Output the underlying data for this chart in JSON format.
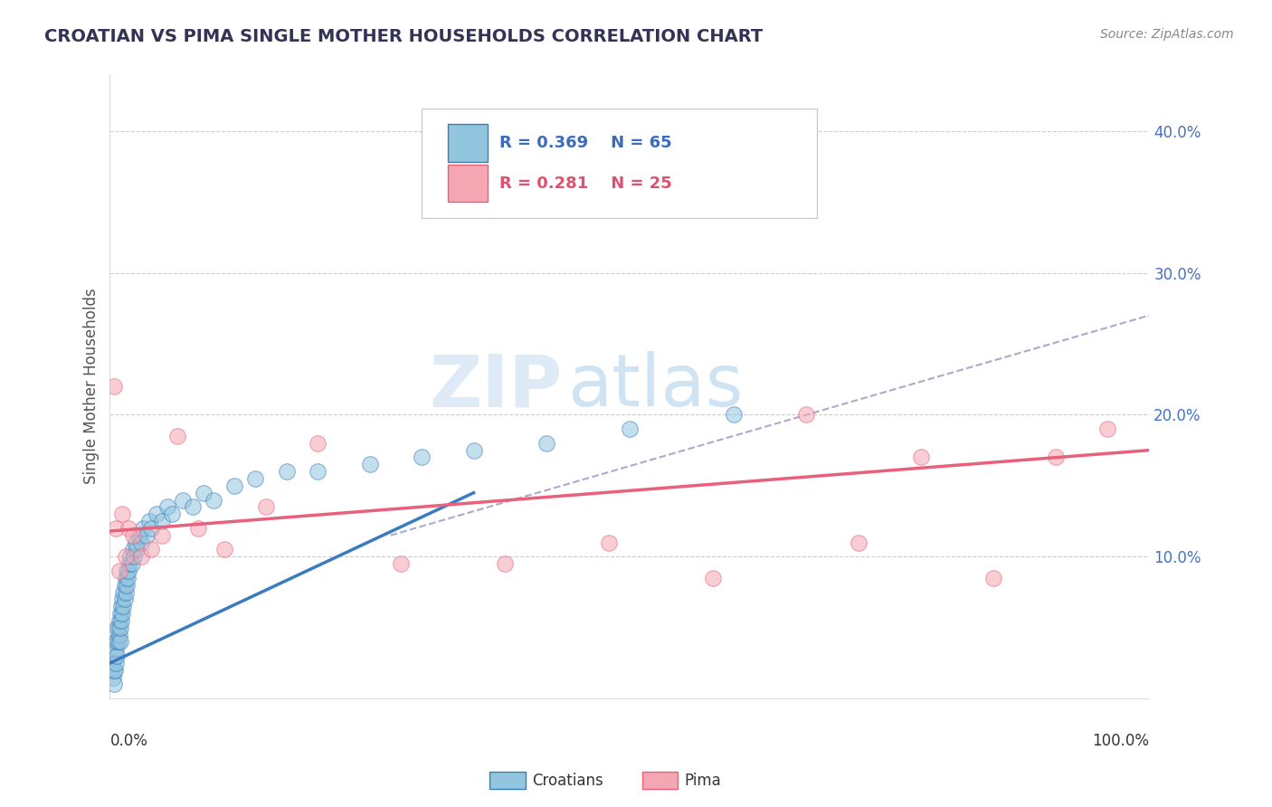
{
  "title": "CROATIAN VS PIMA SINGLE MOTHER HOUSEHOLDS CORRELATION CHART",
  "source": "Source: ZipAtlas.com",
  "ylabel": "Single Mother Households",
  "xlim": [
    0,
    1.0
  ],
  "ylim": [
    0,
    0.44
  ],
  "yticks": [
    0.0,
    0.1,
    0.2,
    0.3,
    0.4
  ],
  "ytick_labels": [
    "",
    "10.0%",
    "20.0%",
    "30.0%",
    "40.0%"
  ],
  "legend_croatians_R": "R = 0.369",
  "legend_croatians_N": "N = 65",
  "legend_pima_R": "R = 0.281",
  "legend_pima_N": "N = 25",
  "color_blue": "#92c5de",
  "color_blue_line": "#3a7bbf",
  "color_pink": "#f4a7b2",
  "color_pink_line": "#e8607a",
  "color_dashed": "#aaaacc",
  "watermark_zip": "ZIP",
  "watermark_atlas": "atlas",
  "croatians_x": [
    0.002,
    0.003,
    0.003,
    0.004,
    0.004,
    0.005,
    0.005,
    0.005,
    0.006,
    0.006,
    0.007,
    0.007,
    0.007,
    0.008,
    0.008,
    0.009,
    0.009,
    0.01,
    0.01,
    0.01,
    0.011,
    0.011,
    0.012,
    0.012,
    0.013,
    0.013,
    0.014,
    0.014,
    0.015,
    0.015,
    0.016,
    0.016,
    0.017,
    0.018,
    0.019,
    0.02,
    0.021,
    0.022,
    0.023,
    0.025,
    0.026,
    0.028,
    0.03,
    0.032,
    0.035,
    0.038,
    0.04,
    0.045,
    0.05,
    0.055,
    0.06,
    0.07,
    0.08,
    0.09,
    0.1,
    0.12,
    0.14,
    0.17,
    0.2,
    0.25,
    0.3,
    0.35,
    0.42,
    0.5,
    0.6
  ],
  "croatians_y": [
    0.02,
    0.015,
    0.025,
    0.01,
    0.02,
    0.02,
    0.03,
    0.04,
    0.025,
    0.035,
    0.03,
    0.04,
    0.05,
    0.04,
    0.05,
    0.045,
    0.055,
    0.04,
    0.05,
    0.06,
    0.055,
    0.065,
    0.06,
    0.07,
    0.065,
    0.075,
    0.07,
    0.08,
    0.075,
    0.085,
    0.08,
    0.09,
    0.085,
    0.09,
    0.095,
    0.1,
    0.095,
    0.105,
    0.1,
    0.11,
    0.105,
    0.115,
    0.11,
    0.12,
    0.115,
    0.125,
    0.12,
    0.13,
    0.125,
    0.135,
    0.13,
    0.14,
    0.135,
    0.145,
    0.14,
    0.15,
    0.155,
    0.16,
    0.16,
    0.165,
    0.17,
    0.175,
    0.18,
    0.19,
    0.2
  ],
  "pima_x": [
    0.004,
    0.006,
    0.009,
    0.012,
    0.015,
    0.018,
    0.022,
    0.03,
    0.04,
    0.05,
    0.065,
    0.085,
    0.11,
    0.15,
    0.2,
    0.28,
    0.38,
    0.48,
    0.58,
    0.67,
    0.72,
    0.78,
    0.85,
    0.91,
    0.96
  ],
  "pima_y": [
    0.22,
    0.12,
    0.09,
    0.13,
    0.1,
    0.12,
    0.115,
    0.1,
    0.105,
    0.115,
    0.185,
    0.12,
    0.105,
    0.135,
    0.18,
    0.095,
    0.095,
    0.11,
    0.085,
    0.2,
    0.11,
    0.17,
    0.085,
    0.17,
    0.19
  ],
  "blue_line_x0": 0.0,
  "blue_line_y0": 0.025,
  "blue_line_x1": 0.35,
  "blue_line_y1": 0.145,
  "pink_line_x0": 0.0,
  "pink_line_y0": 0.118,
  "pink_line_x1": 1.0,
  "pink_line_y1": 0.175,
  "dash_line_x0": 0.27,
  "dash_line_y0": 0.115,
  "dash_line_x1": 1.0,
  "dash_line_y1": 0.27
}
